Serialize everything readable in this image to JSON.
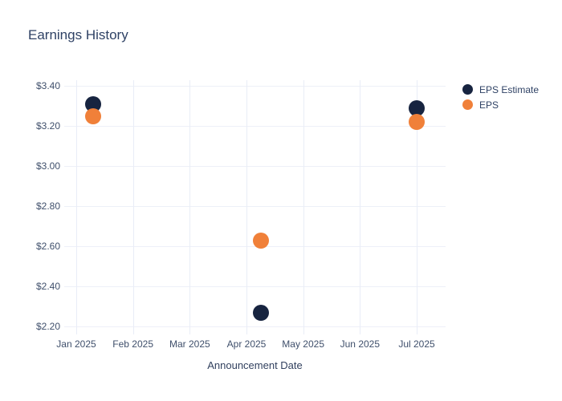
{
  "title": "Earnings History",
  "x_axis": {
    "title": "Announcement Date",
    "ticks": [
      {
        "label": "Jan 2025",
        "date": "2025-01-01"
      },
      {
        "label": "Feb 2025",
        "date": "2025-02-01"
      },
      {
        "label": "Mar 2025",
        "date": "2025-03-01"
      },
      {
        "label": "Apr 2025",
        "date": "2025-04-01"
      },
      {
        "label": "May 2025",
        "date": "2025-05-01"
      },
      {
        "label": "Jun 2025",
        "date": "2025-06-01"
      },
      {
        "label": "Jul 2025",
        "date": "2025-07-01"
      }
    ]
  },
  "y_axis": {
    "ticks": [
      {
        "label": "$3.40",
        "value": 3.4
      },
      {
        "label": "$3.20",
        "value": 3.2
      },
      {
        "label": "$3.00",
        "value": 3.0
      },
      {
        "label": "$2.80",
        "value": 2.8
      },
      {
        "label": "$2.60",
        "value": 2.6
      },
      {
        "label": "$2.40",
        "value": 2.4
      },
      {
        "label": "$2.20",
        "value": 2.2
      }
    ]
  },
  "chart_data": {
    "type": "scatter",
    "title": "Earnings History",
    "xlabel": "Announcement Date",
    "ylabel": "",
    "x": [
      "2025-01-10",
      "2025-04-09",
      "2025-07-01"
    ],
    "series": [
      {
        "name": "EPS Estimate",
        "color": "#172440",
        "values": [
          3.31,
          2.27,
          3.29
        ]
      },
      {
        "name": "EPS",
        "color": "#f08039",
        "values": [
          3.25,
          2.63,
          3.22
        ]
      }
    ],
    "ylim": [
      2.16,
      3.44
    ],
    "xlim": [
      "2025-01-01",
      "2025-07-15"
    ],
    "grid": true,
    "legend_position": "right-outside-top",
    "marker_size_px": 20
  },
  "colors": {
    "eps_estimate": "#172440",
    "eps": "#f08039",
    "title_text": "#2f4265",
    "tick_text": "#3f4f6b",
    "grid": "#edf0f8"
  }
}
